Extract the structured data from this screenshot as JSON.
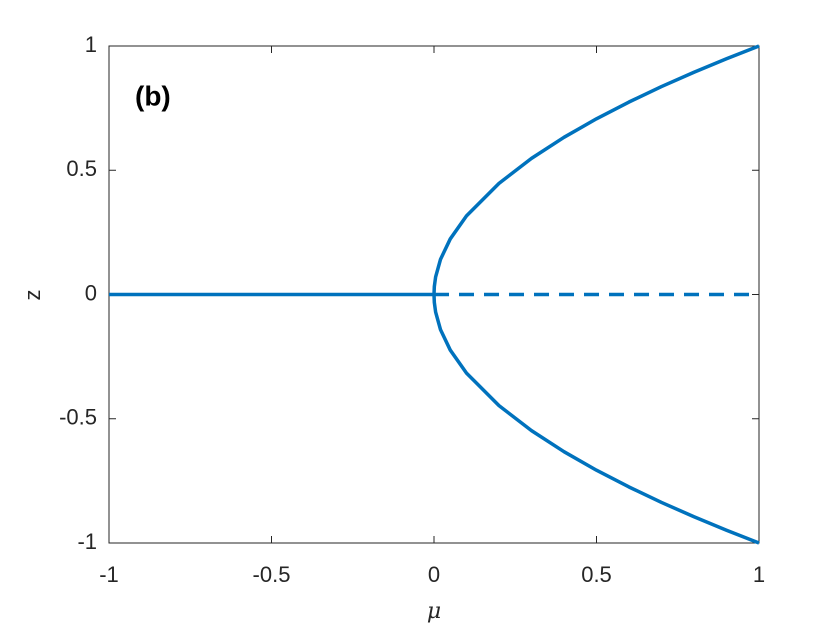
{
  "chart_data": {
    "type": "line",
    "annotation": "(b)",
    "x_label": "μ",
    "y_label": "z",
    "xlim": [
      -1,
      1
    ],
    "xticks": [
      -1,
      -0.5,
      0,
      0.5,
      1
    ],
    "ylim": [
      -1,
      1
    ],
    "yticks": [
      -1,
      -0.5,
      0,
      0.5,
      1
    ],
    "series": [
      {
        "color": "#0072bd",
        "dashed": false,
        "x": [
          -1,
          0
        ],
        "values": [
          0,
          0
        ]
      },
      {
        "color": "#0072bd",
        "dashed": true,
        "x": [
          0,
          1
        ],
        "values": [
          0,
          0
        ]
      },
      {
        "color": "#0072bd",
        "dashed": false,
        "x": [
          0,
          0.001,
          0.005,
          0.02,
          0.05,
          0.1,
          0.2,
          0.3,
          0.4,
          0.5,
          0.6,
          0.7,
          0.8,
          0.9,
          1
        ],
        "values": [
          0,
          0.0316,
          0.0707,
          0.1414,
          0.2236,
          0.3162,
          0.4472,
          0.5477,
          0.6325,
          0.7071,
          0.7746,
          0.8367,
          0.8944,
          0.9487,
          1
        ]
      },
      {
        "color": "#0072bd",
        "dashed": false,
        "x": [
          0,
          0.001,
          0.005,
          0.02,
          0.05,
          0.1,
          0.2,
          0.3,
          0.4,
          0.5,
          0.6,
          0.7,
          0.8,
          0.9,
          1
        ],
        "values": [
          0,
          -0.0316,
          -0.0707,
          -0.1414,
          -0.2236,
          -0.3162,
          -0.4472,
          -0.5477,
          -0.6325,
          -0.7071,
          -0.7746,
          -0.8367,
          -0.8944,
          -0.9487,
          -1
        ]
      }
    ]
  }
}
